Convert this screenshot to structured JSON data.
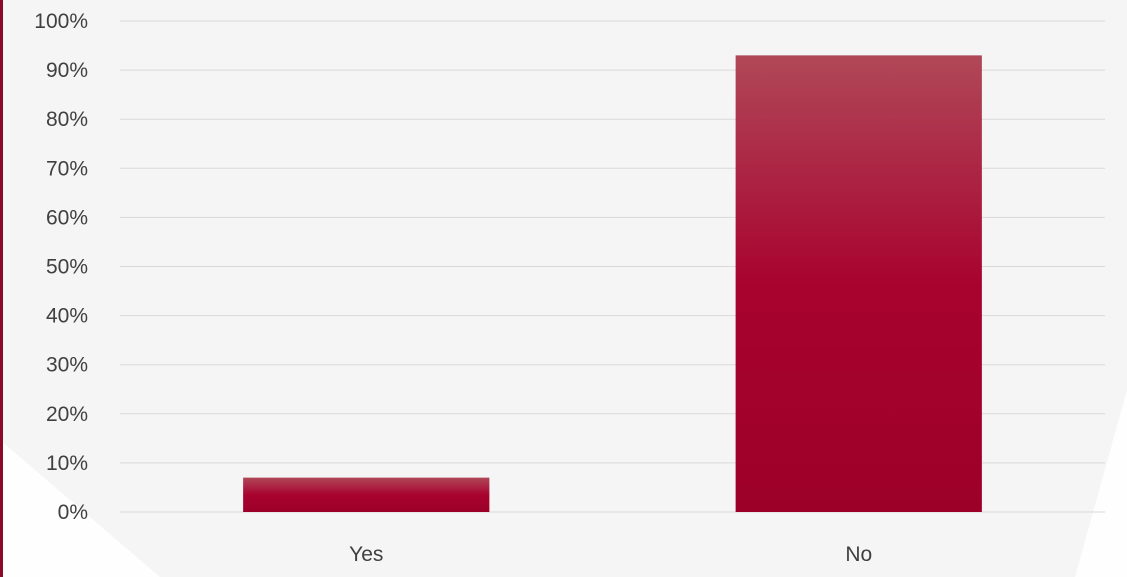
{
  "colors": {
    "background": "#f5f5f5",
    "accent_border": "#8a0a2a",
    "bar_top": "#b04858",
    "bar_mid": "#a8032f",
    "bar_bottom": "#9c0028",
    "gridline": "#d9d9d9",
    "text": "#404040"
  },
  "chart_data": {
    "type": "bar",
    "title": "",
    "xlabel": "",
    "ylabel": "",
    "categories": [
      "Yes",
      "No"
    ],
    "values": [
      7,
      93
    ],
    "value_format": "percent",
    "ylim": [
      0,
      100
    ],
    "yticks": [
      "0%",
      "10%",
      "20%",
      "30%",
      "40%",
      "50%",
      "60%",
      "70%",
      "80%",
      "90%",
      "100%"
    ],
    "grid": true,
    "legend": "none"
  }
}
